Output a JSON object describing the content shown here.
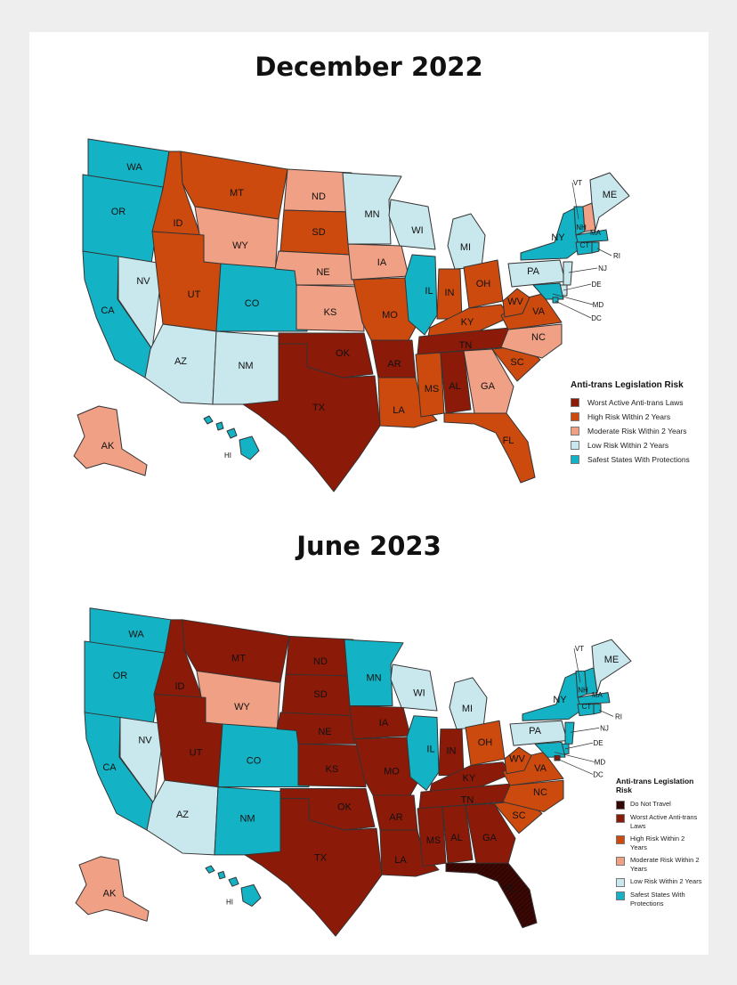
{
  "maps": [
    {
      "title": "December 2022",
      "legend_title": "Anti-trans Legislation Risk",
      "legend": [
        {
          "key": "worst",
          "label": "Worst Active Anti-trans Laws",
          "color": "#8b1a09"
        },
        {
          "key": "high",
          "label": "High Risk Within 2 Years",
          "color": "#cc4a0e"
        },
        {
          "key": "moderate",
          "label": "Moderate Risk Within 2 Years",
          "color": "#f0a085"
        },
        {
          "key": "low",
          "label": "Low Risk Within 2 Years",
          "color": "#c9e8ee"
        },
        {
          "key": "safe",
          "label": "Safest States With Protections",
          "color": "#13b3c5"
        }
      ],
      "states": {
        "WA": "safe",
        "OR": "safe",
        "CA": "safe",
        "NV": "low",
        "ID": "high",
        "MT": "high",
        "WY": "moderate",
        "UT": "high",
        "CO": "safe",
        "AZ": "low",
        "NM": "low",
        "ND": "moderate",
        "SD": "high",
        "NE": "moderate",
        "KS": "moderate",
        "OK": "worst",
        "TX": "worst",
        "MN": "low",
        "IA": "moderate",
        "MO": "high",
        "AR": "worst",
        "LA": "high",
        "WI": "low",
        "IL": "safe",
        "MI": "low",
        "IN": "high",
        "OH": "high",
        "KY": "high",
        "TN": "worst",
        "MS": "high",
        "AL": "worst",
        "GA": "moderate",
        "FL": "high",
        "SC": "high",
        "NC": "moderate",
        "VA": "high",
        "WV": "high",
        "PA": "low",
        "NY": "safe",
        "VT": "safe",
        "NH": "moderate",
        "ME": "low",
        "MA": "safe",
        "CT": "safe",
        "RI": "safe",
        "NJ": "low",
        "DE": "low",
        "MD": "safe",
        "DC": "safe",
        "AK": "moderate",
        "HI": "safe"
      }
    },
    {
      "title": "June 2023",
      "legend_title": "Anti-trans Legislation Risk",
      "legend": [
        {
          "key": "dnt",
          "label": "Do Not Travel",
          "color": "#3d0804"
        },
        {
          "key": "worst",
          "label": "Worst Active Anti-trans Laws",
          "color": "#8b1a09"
        },
        {
          "key": "high",
          "label": "High Risk Within 2 Years",
          "color": "#cc4a0e"
        },
        {
          "key": "moderate",
          "label": "Moderate Risk Within 2 Years",
          "color": "#f0a085"
        },
        {
          "key": "low",
          "label": "Low Risk Within 2 Years",
          "color": "#c9e8ee"
        },
        {
          "key": "safe",
          "label": "Safest States With Protections",
          "color": "#13b3c5"
        }
      ],
      "states": {
        "WA": "safe",
        "OR": "safe",
        "CA": "safe",
        "NV": "low",
        "ID": "worst",
        "MT": "worst",
        "WY": "moderate",
        "UT": "worst",
        "CO": "safe",
        "AZ": "low",
        "NM": "safe",
        "ND": "worst",
        "SD": "worst",
        "NE": "worst",
        "KS": "worst",
        "OK": "worst",
        "TX": "worst",
        "MN": "safe",
        "IA": "worst",
        "MO": "worst",
        "AR": "worst",
        "LA": "worst",
        "WI": "low",
        "IL": "safe",
        "MI": "low",
        "IN": "worst",
        "OH": "high",
        "KY": "worst",
        "TN": "worst",
        "MS": "worst",
        "AL": "worst",
        "GA": "worst",
        "FL": "dnt",
        "SC": "high",
        "NC": "high",
        "VA": "high",
        "WV": "high",
        "PA": "low",
        "NY": "safe",
        "VT": "safe",
        "NH": "safe",
        "ME": "low",
        "MA": "safe",
        "CT": "safe",
        "RI": "safe",
        "NJ": "safe",
        "DE": "safe",
        "MD": "safe",
        "DC": "worst",
        "AK": "moderate",
        "HI": "safe"
      }
    }
  ]
}
